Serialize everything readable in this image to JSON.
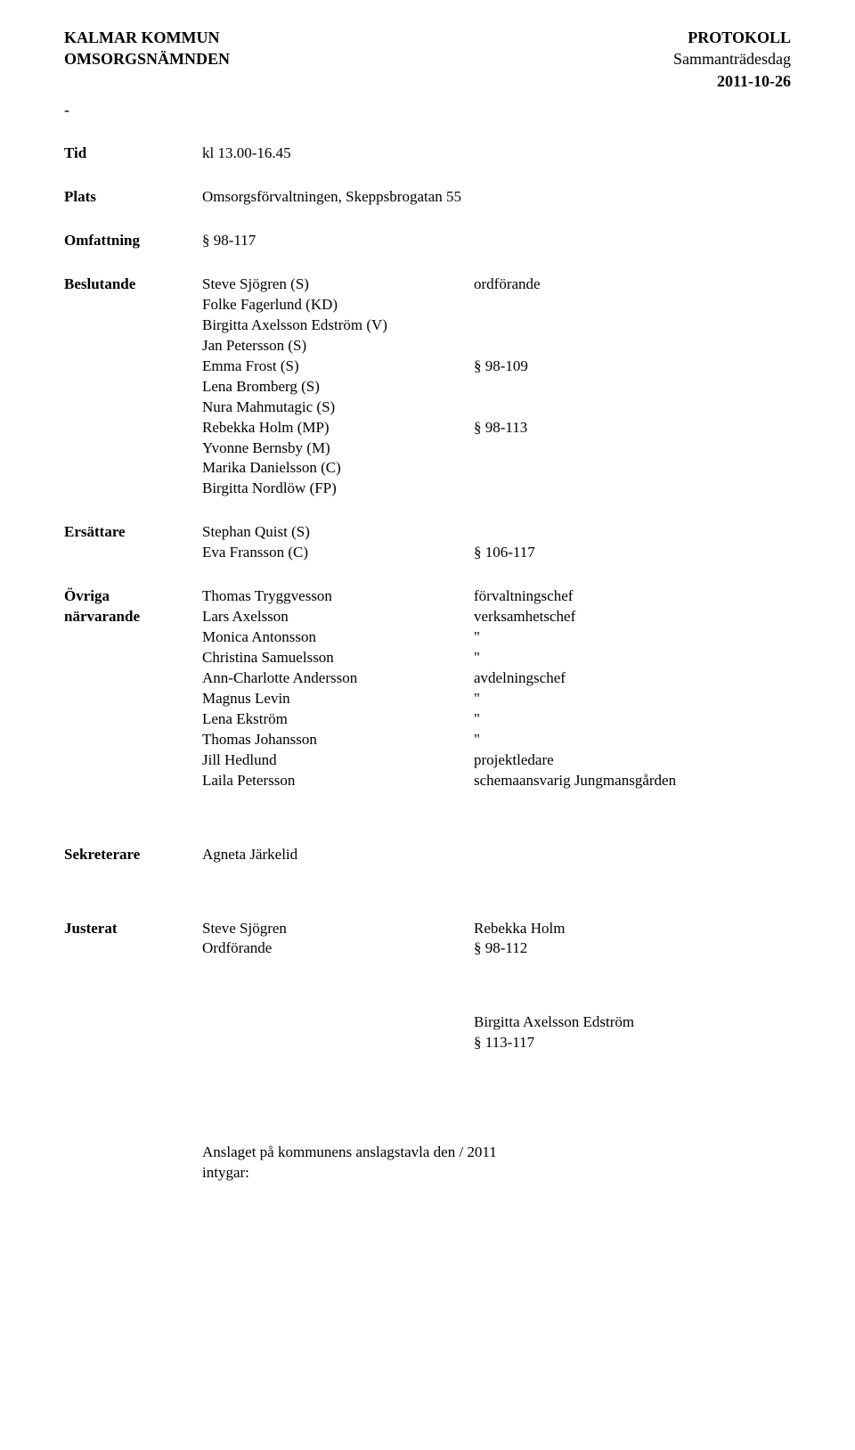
{
  "header": {
    "org_line1_left": "KALMAR KOMMUN",
    "org_line1_right": "PROTOKOLL",
    "org_line2_left": "OMSORGSNÄMNDEN",
    "org_line2_right": "Sammanträdesdag",
    "date": "2011-10-26",
    "dash": "-"
  },
  "tid": {
    "label": "Tid",
    "value": "kl 13.00-16.45"
  },
  "plats": {
    "label": "Plats",
    "value": "Omsorgsförvaltningen, Skeppsbrogatan 55"
  },
  "omfattning": {
    "label": "Omfattning",
    "value": "§ 98-117"
  },
  "beslutande": {
    "label": "Beslutande",
    "rows": [
      {
        "name": "Steve Sjögren (S)",
        "role": "ordförande"
      },
      {
        "name": "Folke Fagerlund (KD)",
        "role": ""
      },
      {
        "name": "Birgitta Axelsson Edström (V)",
        "role": ""
      },
      {
        "name": "Jan Petersson (S)",
        "role": ""
      },
      {
        "name": "Emma Frost (S)",
        "role": "§ 98-109"
      },
      {
        "name": "Lena Bromberg (S)",
        "role": ""
      },
      {
        "name": "Nura Mahmutagic (S)",
        "role": ""
      },
      {
        "name": "Rebekka Holm (MP)",
        "role": "§ 98-113"
      },
      {
        "name": "Yvonne Bernsby (M)",
        "role": ""
      },
      {
        "name": "Marika Danielsson (C)",
        "role": ""
      },
      {
        "name": "Birgitta Nordlöw (FP)",
        "role": ""
      }
    ]
  },
  "ersattare": {
    "label": "Ersättare",
    "rows": [
      {
        "name": "Stephan Quist (S)",
        "role": ""
      },
      {
        "name": "Eva Fransson (C)",
        "role": "§ 106-117"
      }
    ]
  },
  "ovriga": {
    "label1": "Övriga",
    "label2": "närvarande",
    "rows": [
      {
        "name": "Thomas Tryggvesson",
        "role": "förvaltningschef"
      },
      {
        "name": "Lars Axelsson",
        "role": "verksamhetschef"
      },
      {
        "name": "Monica Antonsson",
        "role": "\""
      },
      {
        "name": "Christina Samuelsson",
        "role": "\""
      },
      {
        "name": "Ann-Charlotte Andersson",
        "role": "avdelningschef"
      },
      {
        "name": "Magnus Levin",
        "role": "\""
      },
      {
        "name": "Lena Ekström",
        "role": "\""
      },
      {
        "name": "Thomas Johansson",
        "role": "\""
      },
      {
        "name": "Jill Hedlund",
        "role": "projektledare"
      },
      {
        "name": "Laila Petersson",
        "role": "schemaansvarig Jungmansgården"
      }
    ]
  },
  "sekreterare": {
    "label": "Sekreterare",
    "value": "Agneta Järkelid"
  },
  "justerat": {
    "label": "Justerat",
    "rows": [
      {
        "left": "Steve Sjögren",
        "right": "Rebekka Holm"
      },
      {
        "left": "Ordförande",
        "right": "§ 98-112"
      }
    ]
  },
  "appendix": {
    "name": "Birgitta Axelsson Edström",
    "range": "§ 113-117"
  },
  "footer": {
    "text": "Anslaget på kommunens anslagstavla den       /       2011",
    "intygar": "intygar:"
  }
}
